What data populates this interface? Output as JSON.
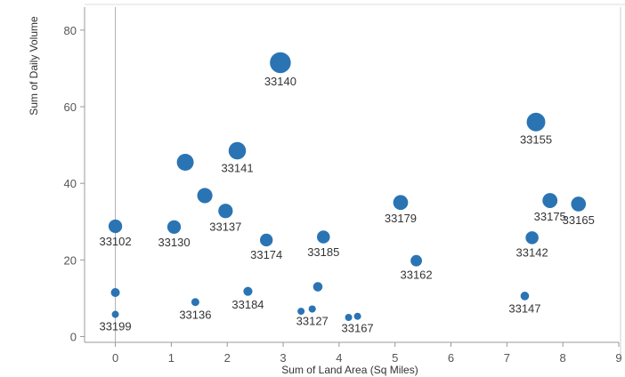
{
  "colors": {
    "marker": "#2A74B4",
    "axis": "#999999",
    "frame": "#cfcfcf",
    "zero_line": "#b0b0b0"
  },
  "chart_data": {
    "type": "scatter",
    "xlabel": "Sum of Land Area (Sq Miles)",
    "ylabel": "Sum of Daily Volume",
    "xlim": [
      -0.55,
      9.0
    ],
    "ylim": [
      -1.5,
      86
    ],
    "xticks": [
      0,
      1,
      2,
      3,
      4,
      5,
      6,
      7,
      8,
      9
    ],
    "yticks": [
      0,
      20,
      40,
      60,
      80
    ],
    "grid": false,
    "points": [
      {
        "label": "33140",
        "x": 2.95,
        "y": 71.5,
        "label_pos": "below"
      },
      {
        "label": "33155",
        "x": 7.52,
        "y": 56.0,
        "label_pos": "below"
      },
      {
        "label": "",
        "x": 1.25,
        "y": 45.5
      },
      {
        "label": "33141",
        "x": 2.18,
        "y": 48.5,
        "label_pos": "below"
      },
      {
        "label": "",
        "x": 1.6,
        "y": 36.8
      },
      {
        "label": "33137",
        "x": 1.97,
        "y": 32.8,
        "label_pos": "below"
      },
      {
        "label": "33102",
        "x": 0.0,
        "y": 28.8,
        "label_pos": "below"
      },
      {
        "label": "33130",
        "x": 1.05,
        "y": 28.6,
        "label_pos": "below"
      },
      {
        "label": "33174",
        "x": 2.7,
        "y": 25.2,
        "label_pos": "below"
      },
      {
        "label": "33185",
        "x": 3.72,
        "y": 26.0,
        "label_pos": "below"
      },
      {
        "label": "33179",
        "x": 5.1,
        "y": 35.0,
        "label_pos": "below"
      },
      {
        "label": "33175",
        "x": 7.77,
        "y": 35.5,
        "label_pos": "below"
      },
      {
        "label": "33165",
        "x": 8.28,
        "y": 34.6,
        "label_pos": "below"
      },
      {
        "label": "33142",
        "x": 7.45,
        "y": 25.8,
        "label_pos": "below"
      },
      {
        "label": "33162",
        "x": 5.38,
        "y": 19.8,
        "label_pos": "below"
      },
      {
        "label": "",
        "x": 0.0,
        "y": 11.5
      },
      {
        "label": "33199",
        "x": 0.0,
        "y": 5.8,
        "label_pos": "below"
      },
      {
        "label": "33136",
        "x": 1.43,
        "y": 9.0,
        "label_pos": "below"
      },
      {
        "label": "33184",
        "x": 2.37,
        "y": 11.8,
        "label_pos": "below"
      },
      {
        "label": "",
        "x": 3.62,
        "y": 13.0
      },
      {
        "label": "",
        "x": 3.32,
        "y": 6.6
      },
      {
        "label": "33127",
        "x": 3.52,
        "y": 7.2,
        "label_pos": "below"
      },
      {
        "label": "",
        "x": 4.17,
        "y": 5.0
      },
      {
        "label": "33167",
        "x": 4.33,
        "y": 5.3,
        "label_pos": "below"
      },
      {
        "label": "33147",
        "x": 7.32,
        "y": 10.6,
        "label_pos": "below"
      }
    ]
  }
}
